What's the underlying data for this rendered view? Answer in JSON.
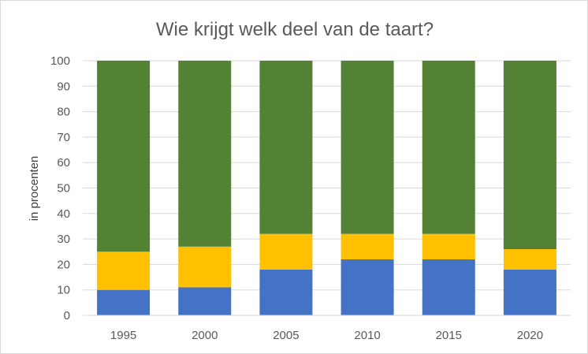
{
  "chart_data": {
    "type": "bar",
    "stacked": true,
    "title": "Wie krijgt welk deel van de taart?",
    "xlabel": "",
    "ylabel": "in procenten",
    "categories": [
      "1995",
      "2000",
      "2005",
      "2010",
      "2015",
      "2020"
    ],
    "ylim": [
      0,
      100
    ],
    "yticks": [
      0,
      10,
      20,
      30,
      40,
      50,
      60,
      70,
      80,
      90,
      100
    ],
    "grid": true,
    "legend": "none",
    "series": [
      {
        "color": "#4472c4",
        "values": [
          10,
          11,
          18,
          22,
          22,
          18
        ]
      },
      {
        "color": "#ffc000",
        "values": [
          15,
          16,
          14,
          10,
          10,
          8
        ]
      },
      {
        "color": "#548235",
        "values": [
          75,
          73,
          68,
          68,
          68,
          74
        ]
      }
    ]
  }
}
